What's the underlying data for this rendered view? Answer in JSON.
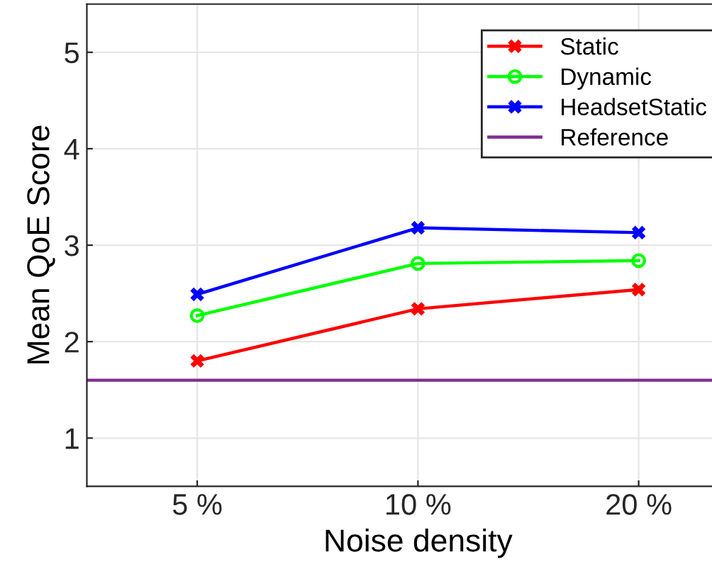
{
  "chart_data": {
    "type": "line",
    "xlabel": "Noise density",
    "ylabel": "Mean QoE Score",
    "categories": [
      "5 %",
      "10 %",
      "20 %"
    ],
    "series": [
      {
        "name": "Static",
        "color": "#ff0000",
        "marker": "cross",
        "values": [
          1.8,
          2.34,
          2.54
        ]
      },
      {
        "name": "Dynamic",
        "color": "#00ff00",
        "marker": "circle",
        "values": [
          2.27,
          2.81,
          2.84
        ]
      },
      {
        "name": "HeadsetStatic",
        "color": "#0000ff",
        "marker": "cross",
        "values": [
          2.49,
          3.18,
          3.13
        ]
      }
    ],
    "ref_lines": [
      {
        "axis": "y",
        "value": 1.6,
        "label": "Reference",
        "color": "#7e2f8e"
      }
    ],
    "ylim": [
      0.5,
      5.5
    ],
    "yticks": [
      1,
      2,
      3,
      4,
      5
    ],
    "grid": true,
    "legend": "top right"
  }
}
